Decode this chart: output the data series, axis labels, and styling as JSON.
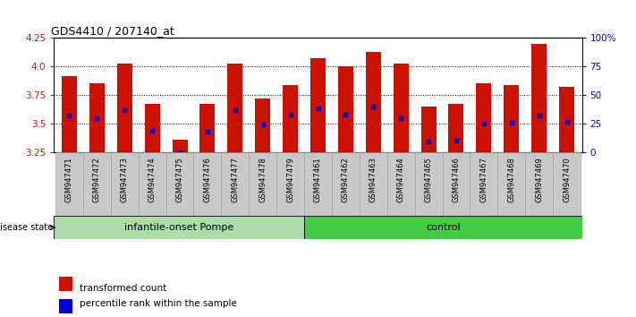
{
  "title": "GDS4410 / 207140_at",
  "samples": [
    "GSM947471",
    "GSM947472",
    "GSM947473",
    "GSM947474",
    "GSM947475",
    "GSM947476",
    "GSM947477",
    "GSM947478",
    "GSM947479",
    "GSM947461",
    "GSM947462",
    "GSM947463",
    "GSM947464",
    "GSM947465",
    "GSM947466",
    "GSM947467",
    "GSM947468",
    "GSM947469",
    "GSM947470"
  ],
  "bar_tops": [
    3.92,
    3.85,
    4.03,
    3.67,
    3.36,
    3.67,
    4.03,
    3.72,
    3.84,
    4.07,
    4.0,
    4.13,
    4.03,
    3.65,
    3.67,
    3.85,
    3.84,
    4.2,
    3.82
  ],
  "blue_positions": [
    3.57,
    3.55,
    3.62,
    3.44,
    3.25,
    3.43,
    3.62,
    3.49,
    3.58,
    3.63,
    3.58,
    3.65,
    3.55,
    3.34,
    3.35,
    3.5,
    3.51,
    3.57,
    3.52
  ],
  "group1_count": 9,
  "group1_label": "infantile-onset Pompe",
  "group2_label": "control",
  "bar_color": "#CC1100",
  "blue_color": "#0000CC",
  "bar_bottom": 3.25,
  "ylim_min": 3.25,
  "ylim_max": 4.25,
  "yticks_left": [
    3.25,
    3.5,
    3.75,
    4.0,
    4.25
  ],
  "yticks_right": [
    0,
    25,
    50,
    75,
    100
  ],
  "grid_values": [
    3.5,
    3.75,
    4.0
  ],
  "tick_label_color_left": "#CC1100",
  "tick_label_color_right": "#0000CC",
  "legend_items": [
    "transformed count",
    "percentile rank within the sample"
  ],
  "legend_colors": [
    "#CC1100",
    "#0000CC"
  ],
  "group1_bg": "#AADDAA",
  "group2_bg": "#44CC44",
  "xticklabel_bg": "#C8C8C8",
  "disease_state_label": "disease state",
  "bar_width": 0.55
}
